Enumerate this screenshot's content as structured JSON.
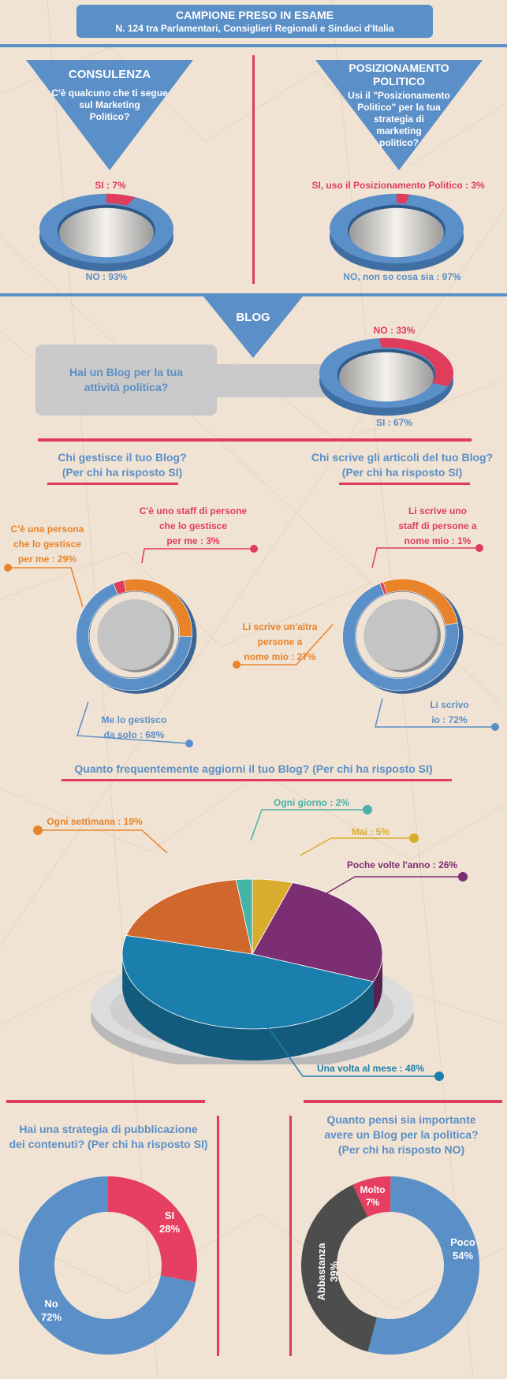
{
  "header": {
    "title": "CAMPIONE PRESO IN ESAME",
    "subtitle": "N. 124 tra Parlamentari, Consiglieri Regionali e Sindaci d'Italia"
  },
  "colors": {
    "background": "#f0e3d3",
    "blue": "#5b8fc7",
    "red": "#e03c5b",
    "orange": "#e8832a",
    "teal": "#46b3a8",
    "yellow": "#d8ad2e",
    "purple": "#7b2e72",
    "dark_gray": "#4d4d4d"
  },
  "sections": {
    "consulenza": {
      "title": "CONSULENZA",
      "question": [
        "C'è qualcuno che ti segue",
        "sul Marketing",
        "Politico?"
      ],
      "yes_label": "SI : 7%",
      "no_label": "NO : 93%"
    },
    "posizionamento": {
      "title": [
        "POSIZIONAMENTO",
        "POLITICO"
      ],
      "question": [
        "Usi il \"Posizionamento",
        "Politico\" per la tua",
        "strategia di",
        "marketing",
        "politico?"
      ],
      "yes_label": "SI, uso il Posizionamento Politico : 3%",
      "no_label": "NO, non so cosa sia : 97%"
    },
    "blog": {
      "title": "BLOG",
      "question": [
        "Hai un Blog per la tua",
        "attività politica?"
      ],
      "no_label": "NO : 33%",
      "yes_label": "SI : 67%"
    },
    "gestisce": {
      "title": [
        "Chi gestisce il tuo Blog?",
        "(Per chi ha risposto SI)"
      ],
      "label_staff": [
        "C'è uno staff di persone",
        "che lo gestisce",
        "per me : 3%"
      ],
      "label_persona": [
        "C'è una persona",
        "che lo gestisce",
        "per me : 29%"
      ],
      "label_solo": [
        "Me lo gestisco",
        "da solo : 68%"
      ]
    },
    "scrive": {
      "title": [
        "Chi scrive gli articoli del tuo Blog?",
        "(Per chi ha risposto SI)"
      ],
      "label_staff": [
        "Li scrive uno",
        "staff di persone a",
        "nome mio : 1%"
      ],
      "label_altra": [
        "Li scrive un'altra",
        "persone a",
        "nome mio : 27%"
      ],
      "label_io": [
        "Li scrivo",
        "io : 72%"
      ]
    },
    "frequenza": {
      "title": "Quanto frequentemente aggiorni il tuo Blog? (Per chi ha risposto SI)",
      "labels": {
        "ogni_giorno": "Ogni giorno : 2%",
        "ogni_settimana": "Ogni settimana : 19%",
        "mai": "Mai : 5%",
        "poche_volte": "Poche volte l'anno : 26%",
        "una_volta": "Una volta al mese : 48%"
      }
    },
    "strategia": {
      "title": [
        "Hai una strategia di pubblicazione",
        "dei contenuti? (Per chi ha risposto SI)"
      ],
      "si_label": [
        "SI",
        "28%"
      ],
      "no_label": [
        "No",
        "72%"
      ]
    },
    "importanza": {
      "title": [
        "Quanto pensi sia importante",
        "avere un Blog per la politica?",
        "(Per chi ha risposto NO)"
      ],
      "molto_label": [
        "Molto",
        "7%"
      ],
      "poco_label": [
        "Poco",
        "54%"
      ],
      "abbastanza_label": [
        "Abbastanza",
        "39%"
      ]
    }
  },
  "chart_data": [
    {
      "type": "pie",
      "title": "CONSULENZA",
      "categories": [
        "SI",
        "NO"
      ],
      "values": [
        7,
        93
      ],
      "colors": [
        "#e03c5b",
        "#5b8fc7"
      ]
    },
    {
      "type": "pie",
      "title": "POSIZIONAMENTO POLITICO",
      "categories": [
        "SI, uso il Posizionamento Politico",
        "NO, non so cosa sia"
      ],
      "values": [
        3,
        97
      ],
      "colors": [
        "#e03c5b",
        "#5b8fc7"
      ]
    },
    {
      "type": "pie",
      "title": "BLOG",
      "categories": [
        "NO",
        "SI"
      ],
      "values": [
        33,
        67
      ],
      "colors": [
        "#e03c5b",
        "#5b8fc7"
      ]
    },
    {
      "type": "pie",
      "title": "Chi gestisce il tuo Blog?",
      "categories": [
        "C'è uno staff di persone che lo gestisce per me",
        "C'è una persona che lo gestisce per me",
        "Me lo gestisco da solo"
      ],
      "values": [
        3,
        29,
        68
      ],
      "colors": [
        "#e03c5b",
        "#e8832a",
        "#5b8fc7"
      ]
    },
    {
      "type": "pie",
      "title": "Chi scrive gli articoli del tuo Blog?",
      "categories": [
        "Li scrive uno staff di persone a nome mio",
        "Li scrive un'altra persone a nome mio",
        "Li scrivo io"
      ],
      "values": [
        1,
        27,
        72
      ],
      "colors": [
        "#e03c5b",
        "#e8832a",
        "#5b8fc7"
      ]
    },
    {
      "type": "pie",
      "title": "Quanto frequentemente aggiorni il tuo Blog?",
      "categories": [
        "Mai",
        "Poche volte l'anno",
        "Una volta al mese",
        "Ogni settimana",
        "Ogni giorno"
      ],
      "values": [
        5,
        26,
        48,
        19,
        2
      ],
      "colors": [
        "#d8ad2e",
        "#7b2e72",
        "#1b7fad",
        "#d0672c",
        "#46b3a8"
      ]
    },
    {
      "type": "pie",
      "title": "Hai una strategia di pubblicazione dei contenuti?",
      "categories": [
        "SI",
        "No"
      ],
      "values": [
        28,
        72
      ],
      "colors": [
        "#e63f62",
        "#5b8fc7"
      ]
    },
    {
      "type": "pie",
      "title": "Quanto pensi sia importante avere un Blog per la politica?",
      "categories": [
        "Molto",
        "Poco",
        "Abbastanza"
      ],
      "values": [
        7,
        54,
        39
      ],
      "colors": [
        "#e63f62",
        "#5b8fc7",
        "#4d4d4d"
      ]
    }
  ]
}
